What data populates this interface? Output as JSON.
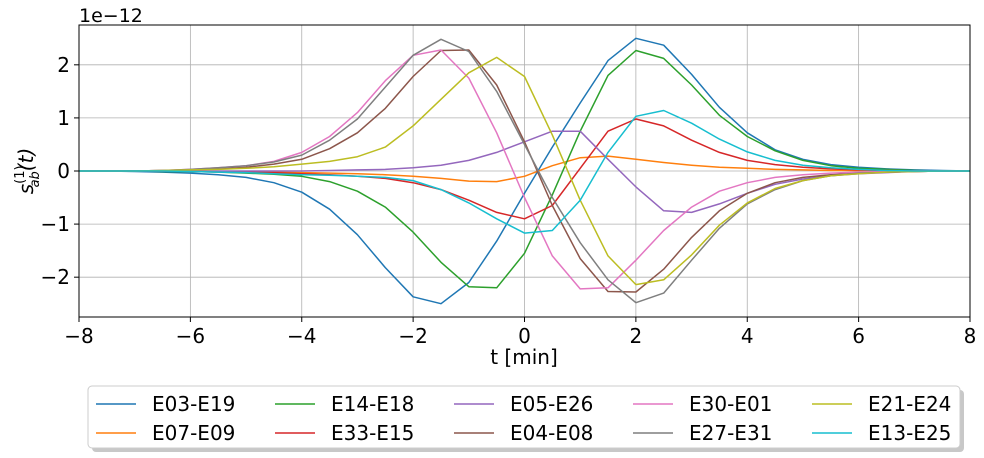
{
  "chart_data": {
    "type": "line",
    "offset_text": "1e−12",
    "ylabel_main": "s",
    "ylabel_sup": "(1)",
    "ylabel_sub": "ab",
    "ylabel_arg": "(t)",
    "xlabel": "t [min]",
    "xlim": [
      -8,
      8
    ],
    "ylim": [
      -2.75,
      2.75
    ],
    "xticks": [
      -8,
      -6,
      -4,
      -2,
      0,
      2,
      4,
      6,
      8
    ],
    "xtick_labels": [
      "−8",
      "−6",
      "−4",
      "−2",
      "0",
      "2",
      "4",
      "6",
      "8"
    ],
    "yticks": [
      -2,
      -1,
      0,
      1,
      2
    ],
    "ytick_labels": [
      "−2",
      "−1",
      "0",
      "1",
      "2"
    ],
    "grid": true,
    "legend_position": "bottom-outside",
    "legend_columns": 5,
    "x": [
      -8,
      -7.5,
      -7,
      -6.5,
      -6,
      -5.5,
      -5,
      -4.5,
      -4,
      -3.5,
      -3,
      -2.5,
      -2,
      -1.5,
      -1,
      -0.5,
      0,
      0.5,
      1,
      1.5,
      2,
      2.5,
      3,
      3.5,
      4,
      4.5,
      5,
      5.5,
      6,
      6.5,
      7,
      7.5,
      8
    ],
    "series": [
      {
        "name": "E03-E19",
        "color": "#1f77b4",
        "values": [
          0,
          0,
          -0.01,
          -0.02,
          -0.04,
          -0.07,
          -0.12,
          -0.22,
          -0.4,
          -0.72,
          -1.2,
          -1.82,
          -2.37,
          -2.5,
          -2.1,
          -1.32,
          -0.42,
          0.45,
          1.28,
          2.08,
          2.5,
          2.37,
          1.82,
          1.2,
          0.72,
          0.4,
          0.22,
          0.12,
          0.07,
          0.04,
          0.02,
          0.01,
          0
        ]
      },
      {
        "name": "E07-E09",
        "color": "#ff7f0e",
        "values": [
          0,
          0,
          0,
          0,
          0,
          -0.01,
          -0.01,
          -0.02,
          -0.03,
          -0.04,
          -0.05,
          -0.07,
          -0.1,
          -0.14,
          -0.19,
          -0.2,
          -0.1,
          0.1,
          0.25,
          0.28,
          0.22,
          0.16,
          0.11,
          0.07,
          0.05,
          0.03,
          0.02,
          0.01,
          0.01,
          0,
          0,
          0,
          0
        ]
      },
      {
        "name": "E14-E18",
        "color": "#2ca02c",
        "values": [
          0,
          0,
          0,
          -0.01,
          -0.01,
          -0.02,
          -0.04,
          -0.06,
          -0.1,
          -0.2,
          -0.38,
          -0.68,
          -1.15,
          -1.72,
          -2.18,
          -2.2,
          -1.55,
          -0.45,
          0.75,
          1.8,
          2.27,
          2.12,
          1.62,
          1.05,
          0.65,
          0.38,
          0.2,
          0.1,
          0.05,
          0.03,
          0.01,
          0,
          0
        ]
      },
      {
        "name": "E33-E15",
        "color": "#d62728",
        "values": [
          0,
          0,
          0,
          0,
          0,
          -0.01,
          -0.02,
          -0.03,
          -0.05,
          -0.07,
          -0.1,
          -0.14,
          -0.22,
          -0.35,
          -0.55,
          -0.78,
          -0.9,
          -0.65,
          0.05,
          0.75,
          0.98,
          0.85,
          0.58,
          0.35,
          0.2,
          0.12,
          0.07,
          0.04,
          0.02,
          0.01,
          0,
          0,
          0
        ]
      },
      {
        "name": "E05-E26",
        "color": "#9467bd",
        "values": [
          0,
          0,
          0,
          0,
          0,
          0,
          0,
          0,
          0,
          0.01,
          0.02,
          0.03,
          0.06,
          0.11,
          0.2,
          0.35,
          0.55,
          0.75,
          0.75,
          0.22,
          -0.3,
          -0.75,
          -0.78,
          -0.62,
          -0.42,
          -0.25,
          -0.15,
          -0.09,
          -0.05,
          -0.03,
          -0.01,
          0,
          0
        ]
      },
      {
        "name": "E04-E08",
        "color": "#8c564b",
        "values": [
          0,
          0,
          0,
          0.01,
          0.02,
          0.04,
          0.07,
          0.13,
          0.22,
          0.42,
          0.72,
          1.18,
          1.78,
          2.27,
          2.28,
          1.62,
          0.55,
          -0.65,
          -1.65,
          -2.27,
          -2.28,
          -1.85,
          -1.25,
          -0.75,
          -0.42,
          -0.22,
          -0.12,
          -0.07,
          -0.04,
          -0.02,
          -0.01,
          0,
          0
        ]
      },
      {
        "name": "E30-E01",
        "color": "#e377c2",
        "values": [
          0,
          0,
          0,
          0.01,
          0.03,
          0.06,
          0.1,
          0.18,
          0.35,
          0.65,
          1.1,
          1.7,
          2.18,
          2.28,
          1.75,
          0.72,
          -0.5,
          -1.6,
          -2.22,
          -2.2,
          -1.68,
          -1.12,
          -0.68,
          -0.38,
          -0.22,
          -0.12,
          -0.07,
          -0.04,
          -0.02,
          -0.01,
          0,
          0,
          0
        ]
      },
      {
        "name": "E27-E31",
        "color": "#7f7f7f",
        "values": [
          0,
          0,
          0,
          0.01,
          0.03,
          0.06,
          0.1,
          0.17,
          0.3,
          0.58,
          0.98,
          1.58,
          2.18,
          2.48,
          2.25,
          1.5,
          0.5,
          -0.5,
          -1.35,
          -2.05,
          -2.48,
          -2.3,
          -1.68,
          -1.08,
          -0.62,
          -0.35,
          -0.18,
          -0.09,
          -0.04,
          -0.02,
          -0.01,
          0,
          0
        ]
      },
      {
        "name": "E21-E24",
        "color": "#bcbd22",
        "values": [
          0,
          0,
          0,
          0.01,
          0.02,
          0.03,
          0.05,
          0.08,
          0.13,
          0.18,
          0.27,
          0.45,
          0.85,
          1.35,
          1.85,
          2.14,
          1.78,
          0.68,
          -0.55,
          -1.6,
          -2.14,
          -2.05,
          -1.58,
          -1.02,
          -0.6,
          -0.33,
          -0.18,
          -0.09,
          -0.05,
          -0.02,
          -0.01,
          0,
          0
        ]
      },
      {
        "name": "E13-E25",
        "color": "#17becf",
        "values": [
          0,
          0,
          0,
          0,
          -0.01,
          -0.02,
          -0.03,
          -0.05,
          -0.07,
          -0.08,
          -0.1,
          -0.12,
          -0.18,
          -0.35,
          -0.6,
          -0.9,
          -1.17,
          -1.12,
          -0.55,
          0.35,
          1.03,
          1.14,
          0.9,
          0.6,
          0.36,
          0.2,
          0.11,
          0.06,
          0.03,
          0.01,
          0,
          0,
          0
        ]
      }
    ]
  }
}
